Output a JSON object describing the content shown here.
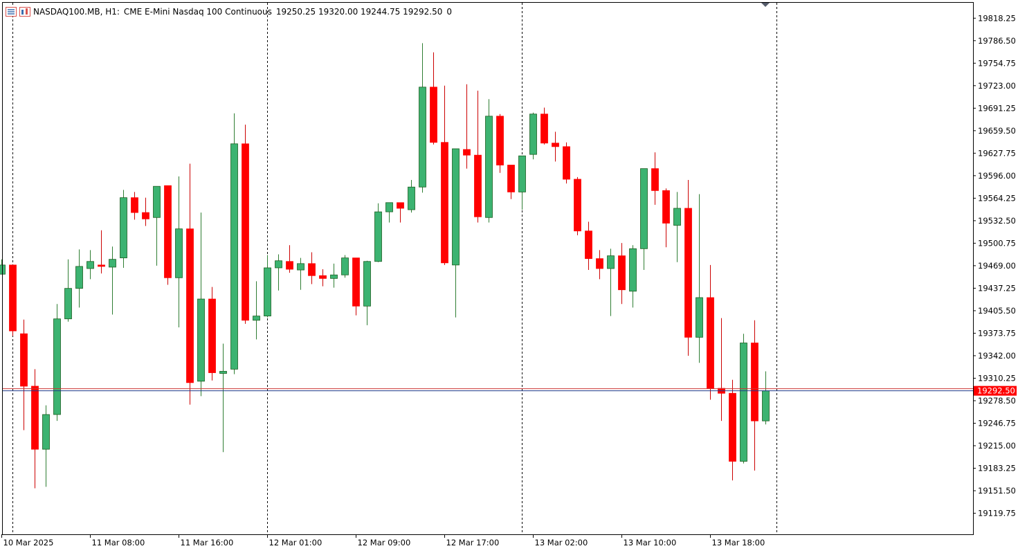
{
  "header": {
    "symbol": "NASDAQ100.MB, H1:",
    "description": "CME E-Mini Nasdaq 100 Continuous",
    "ohlc": "19250.25 19320.00 19244.75 19292.50",
    "volume": "0",
    "icons": [
      "chart-list-icon",
      "chart-window-icon"
    ]
  },
  "colors": {
    "bull": "#3cb371",
    "bear": "#ff0000",
    "bid_line": "#1f3a8a",
    "ask_line": "#cc3333",
    "price_label_bg": "#ff0000"
  },
  "chart_data": {
    "type": "candlestick",
    "timeframe": "H1",
    "ylim": [
      19090,
      19840
    ],
    "yticks": [
      "19818.25",
      "19786.50",
      "19754.75",
      "19723.00",
      "19691.25",
      "19659.50",
      "19627.75",
      "19596.00",
      "19564.25",
      "19532.50",
      "19500.75",
      "19469.00",
      "19437.25",
      "19405.50",
      "19373.75",
      "19342.00",
      "19310.25",
      "19278.50",
      "19246.75",
      "19215.00",
      "19183.25",
      "19151.50",
      "19119.75"
    ],
    "xticks": [
      "10 Mar 2025",
      "11 Mar 08:00",
      "11 Mar 16:00",
      "12 Mar 01:00",
      "12 Mar 09:00",
      "12 Mar 17:00",
      "13 Mar 02:00",
      "13 Mar 10:00",
      "13 Mar 18:00"
    ],
    "xtick_bar_index": [
      0,
      8,
      16,
      24,
      32,
      40,
      48,
      56,
      64
    ],
    "session_separator_bar_index": [
      1,
      24,
      47,
      70
    ],
    "current_price": "19292.50",
    "bid": 19292.5,
    "ask": 19295.5,
    "candles": [
      {
        "o": 19457,
        "h": 19478,
        "l": 19457,
        "c": 19470
      },
      {
        "o": 19470,
        "h": 19470,
        "l": 19370,
        "c": 19377
      },
      {
        "o": 19373,
        "h": 19393,
        "l": 19237,
        "c": 19299
      },
      {
        "o": 19299,
        "h": 19323,
        "l": 19155,
        "c": 19210
      },
      {
        "o": 19210,
        "h": 19272,
        "l": 19157,
        "c": 19259
      },
      {
        "o": 19259,
        "h": 19415,
        "l": 19250,
        "c": 19394
      },
      {
        "o": 19394,
        "h": 19478,
        "l": 19390,
        "c": 19437
      },
      {
        "o": 19437,
        "h": 19492,
        "l": 19410,
        "c": 19468
      },
      {
        "o": 19465,
        "h": 19491,
        "l": 19450,
        "c": 19475
      },
      {
        "o": 19470,
        "h": 19519,
        "l": 19458,
        "c": 19468
      },
      {
        "o": 19467,
        "h": 19496,
        "l": 19400,
        "c": 19478
      },
      {
        "o": 19480,
        "h": 19576,
        "l": 19466,
        "c": 19565
      },
      {
        "o": 19565,
        "h": 19573,
        "l": 19534,
        "c": 19544
      },
      {
        "o": 19544,
        "h": 19565,
        "l": 19525,
        "c": 19535
      },
      {
        "o": 19537,
        "h": 19580,
        "l": 19469,
        "c": 19581
      },
      {
        "o": 19582,
        "h": 19582,
        "l": 19442,
        "c": 19452
      },
      {
        "o": 19452,
        "h": 19595,
        "l": 19382,
        "c": 19521
      },
      {
        "o": 19521,
        "h": 19613,
        "l": 19273,
        "c": 19304
      },
      {
        "o": 19306,
        "h": 19544,
        "l": 19285,
        "c": 19422
      },
      {
        "o": 19422,
        "h": 19439,
        "l": 19307,
        "c": 19318
      },
      {
        "o": 19317,
        "h": 19359,
        "l": 19206,
        "c": 19320
      },
      {
        "o": 19323,
        "h": 19684,
        "l": 19316,
        "c": 19641
      },
      {
        "o": 19641,
        "h": 19668,
        "l": 19387,
        "c": 19392
      },
      {
        "o": 19392,
        "h": 19447,
        "l": 19365,
        "c": 19398
      },
      {
        "o": 19398,
        "h": 19484,
        "l": 19396,
        "c": 19466
      },
      {
        "o": 19466,
        "h": 19485,
        "l": 19434,
        "c": 19476
      },
      {
        "o": 19475,
        "h": 19498,
        "l": 19459,
        "c": 19464
      },
      {
        "o": 19463,
        "h": 19480,
        "l": 19435,
        "c": 19472
      },
      {
        "o": 19472,
        "h": 19488,
        "l": 19443,
        "c": 19455
      },
      {
        "o": 19455,
        "h": 19464,
        "l": 19440,
        "c": 19451
      },
      {
        "o": 19451,
        "h": 19472,
        "l": 19438,
        "c": 19456
      },
      {
        "o": 19456,
        "h": 19484,
        "l": 19452,
        "c": 19480
      },
      {
        "o": 19480,
        "h": 19480,
        "l": 19399,
        "c": 19412
      },
      {
        "o": 19412,
        "h": 19476,
        "l": 19385,
        "c": 19475
      },
      {
        "o": 19475,
        "h": 19557,
        "l": 19474,
        "c": 19545
      },
      {
        "o": 19545,
        "h": 19557,
        "l": 19530,
        "c": 19558
      },
      {
        "o": 19558,
        "h": 19558,
        "l": 19530,
        "c": 19550
      },
      {
        "o": 19548,
        "h": 19590,
        "l": 19544,
        "c": 19580
      },
      {
        "o": 19580,
        "h": 19783,
        "l": 19572,
        "c": 19721
      },
      {
        "o": 19721,
        "h": 19770,
        "l": 19640,
        "c": 19643
      },
      {
        "o": 19643,
        "h": 19723,
        "l": 19470,
        "c": 19473
      },
      {
        "o": 19470,
        "h": 19628,
        "l": 19396,
        "c": 19634
      },
      {
        "o": 19633,
        "h": 19725,
        "l": 19606,
        "c": 19625
      },
      {
        "o": 19625,
        "h": 19716,
        "l": 19530,
        "c": 19538
      },
      {
        "o": 19537,
        "h": 19704,
        "l": 19530,
        "c": 19680
      },
      {
        "o": 19680,
        "h": 19683,
        "l": 19600,
        "c": 19611
      },
      {
        "o": 19611,
        "h": 19610,
        "l": 19563,
        "c": 19573
      },
      {
        "o": 19573,
        "h": 19624,
        "l": 19548,
        "c": 19624
      },
      {
        "o": 19626,
        "h": 19685,
        "l": 19619,
        "c": 19683
      },
      {
        "o": 19683,
        "h": 19692,
        "l": 19640,
        "c": 19642
      },
      {
        "o": 19642,
        "h": 19658,
        "l": 19616,
        "c": 19637
      },
      {
        "o": 19637,
        "h": 19643,
        "l": 19585,
        "c": 19591
      },
      {
        "o": 19591,
        "h": 19594,
        "l": 19512,
        "c": 19518
      },
      {
        "o": 19518,
        "h": 19531,
        "l": 19463,
        "c": 19479
      },
      {
        "o": 19479,
        "h": 19491,
        "l": 19450,
        "c": 19465
      },
      {
        "o": 19465,
        "h": 19493,
        "l": 19398,
        "c": 19483
      },
      {
        "o": 19483,
        "h": 19501,
        "l": 19415,
        "c": 19435
      },
      {
        "o": 19433,
        "h": 19498,
        "l": 19410,
        "c": 19493
      },
      {
        "o": 19493,
        "h": 19606,
        "l": 19463,
        "c": 19606
      },
      {
        "o": 19606,
        "h": 19629,
        "l": 19555,
        "c": 19575
      },
      {
        "o": 19575,
        "h": 19578,
        "l": 19495,
        "c": 19529
      },
      {
        "o": 19526,
        "h": 19573,
        "l": 19474,
        "c": 19550
      },
      {
        "o": 19550,
        "h": 19590,
        "l": 19342,
        "c": 19368
      },
      {
        "o": 19368,
        "h": 19570,
        "l": 19332,
        "c": 19424
      },
      {
        "o": 19424,
        "h": 19470,
        "l": 19280,
        "c": 19296
      },
      {
        "o": 19296,
        "h": 19395,
        "l": 19250,
        "c": 19289
      },
      {
        "o": 19289,
        "h": 19308,
        "l": 19166,
        "c": 19193
      },
      {
        "o": 19193,
        "h": 19373,
        "l": 19190,
        "c": 19360
      },
      {
        "o": 19360,
        "h": 19392,
        "l": 19180,
        "c": 19250
      },
      {
        "o": 19250,
        "h": 19320,
        "l": 19245,
        "c": 19292.5
      }
    ]
  }
}
